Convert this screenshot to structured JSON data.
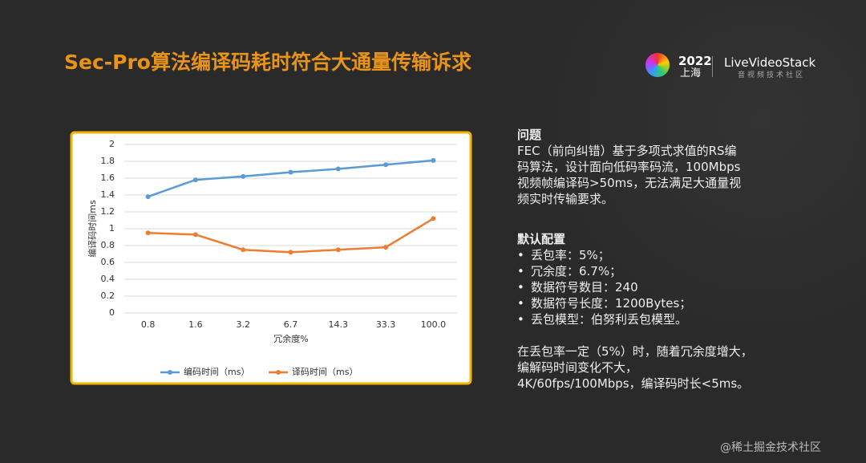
{
  "header": {
    "title": "Sec-Pro算法编译码耗时符合大通量传输诉求"
  },
  "logo": {
    "year": "2022",
    "city": "上海",
    "brand": "LiveVideoStack",
    "tagline": "音视频技术社区"
  },
  "chart_data": {
    "type": "line",
    "x_label": "冗余度%",
    "y_label": "编译码时间ms",
    "categories": [
      "0.8",
      "1.6",
      "3.2",
      "6.7",
      "14.3",
      "33.3",
      "100.0"
    ],
    "series": [
      {
        "name": "编码时间（ms）",
        "color": "#5b9bd5",
        "values": [
          1.38,
          1.58,
          1.62,
          1.67,
          1.71,
          1.76,
          1.81
        ]
      },
      {
        "name": "译码时间（ms）",
        "color": "#ed7d31",
        "values": [
          0.95,
          0.93,
          0.75,
          0.72,
          0.75,
          0.78,
          1.12
        ]
      }
    ],
    "ylim": [
      0,
      2
    ],
    "yticks": [
      0,
      0.2,
      0.4,
      0.6,
      0.8,
      1,
      1.2,
      1.4,
      1.6,
      1.8,
      2
    ],
    "grid": true,
    "legend": "bottom"
  },
  "problem": {
    "heading": "问题",
    "lines": [
      "FEC（前向纠错）基于多项式求值的RS编",
      "码算法，设计面向低码率码流，100Mbps",
      "视频帧编译码>50ms，无法满足大通量视",
      "频实时传输要求。"
    ]
  },
  "config": {
    "heading": "默认配置",
    "items": [
      "丢包率：5%；",
      "冗余度：6.7%；",
      "数据符号数目：240",
      "数据符号长度：1200Bytes；",
      "丢包模型：伯努利丢包模型。"
    ]
  },
  "conclusion": {
    "lines": [
      "在丢包率一定（5%）时，随着冗余度增大，",
      "编解码时间变化不大，",
      "4K/60fps/100Mbps，编译码时长<5ms。"
    ]
  },
  "watermark": "@稀土掘金技术社区"
}
